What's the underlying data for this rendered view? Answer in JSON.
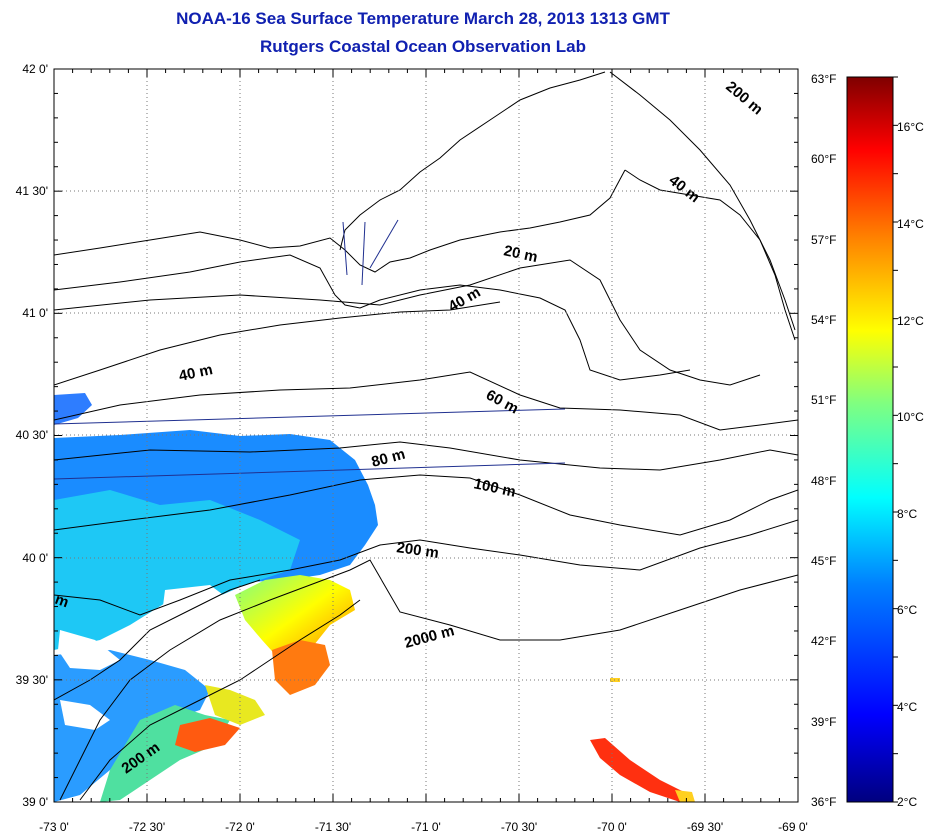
{
  "title": "NOAA-16 Sea Surface Temperature March 28, 2013 1313 GMT",
  "subtitle": "Rutgers Coastal Ocean Observation Lab",
  "lat_labels": [
    "42 0'",
    "41 30'",
    "41 0'",
    "40 30'",
    "40 0'",
    "39 30'",
    "39 0'"
  ],
  "lon_labels": [
    "-73 0'",
    "-72 30'",
    "-72 0'",
    "-71 30'",
    "-71 0'",
    "-70 30'",
    "-70 0'",
    "-69 30'",
    "-69 0'"
  ],
  "fahrenheit_labels": [
    "63°F",
    "60°F",
    "57°F",
    "54°F",
    "51°F",
    "48°F",
    "45°F",
    "42°F",
    "39°F",
    "36°F"
  ],
  "celsius_labels": [
    "16°C",
    "14°C",
    "12°C",
    "10°C",
    "8°C",
    "6°C",
    "4°C",
    "2°C"
  ],
  "contour_labels": [
    "200 m",
    "40 m",
    "20 m",
    "40 m",
    "40 m",
    "60 m",
    "80 m",
    "100 m",
    "200 m",
    "2000 m",
    "200 m",
    "m"
  ],
  "colorbar": {
    "min_c": 2,
    "max_c": 17,
    "stops": [
      "#00007f",
      "#0000ff",
      "#0080ff",
      "#00ffff",
      "#80ff80",
      "#ffff00",
      "#ff8000",
      "#ff0000",
      "#7f0000"
    ]
  },
  "colors": {
    "title": "#1020b0",
    "coast": "#000000",
    "track": "#203090"
  }
}
